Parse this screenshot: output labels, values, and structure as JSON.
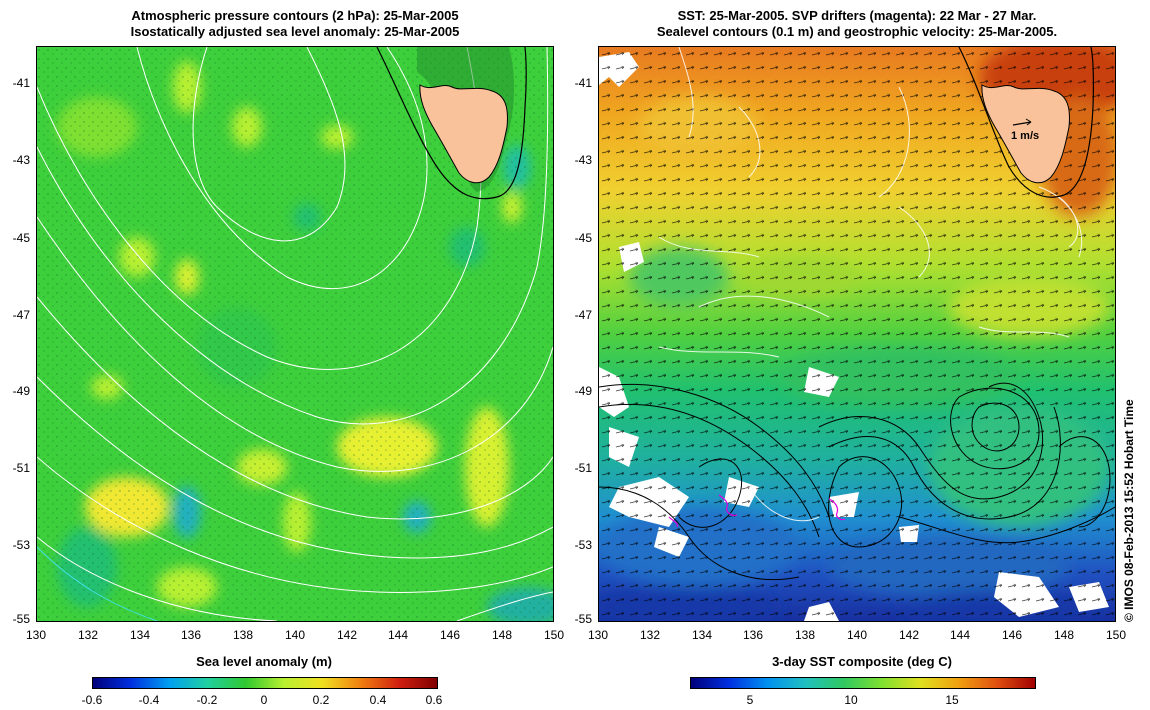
{
  "left_panel": {
    "title_line1": "Atmospheric pressure contours (2 hPa): 25-Mar-2005",
    "title_line2": "Isostatically adjusted sea level anomaly: 25-Mar-2005",
    "colorbar_title": "Sea level anomaly (m)",
    "colorbar_ticks": [
      "-0.6",
      "-0.4",
      "-0.2",
      "0",
      "0.2",
      "0.4",
      "0.6"
    ]
  },
  "right_panel": {
    "title_line1": "SST: 25-Mar-2005. SVP drifters (magenta): 22 Mar - 27 Mar.",
    "title_line2": "Sealevel contours (0.1 m) and geostrophic velocity: 25-Mar-2005.",
    "colorbar_title": "3-day SST composite (deg C)",
    "colorbar_ticks": [
      "5",
      "10",
      "15"
    ],
    "velocity_scale_label": "1 m/s"
  },
  "axes": {
    "x_ticks": [
      "130",
      "132",
      "134",
      "136",
      "138",
      "140",
      "142",
      "144",
      "146",
      "148",
      "150"
    ],
    "y_ticks": [
      "-41",
      "-43",
      "-45",
      "-47",
      "-49",
      "-51",
      "-53",
      "-55"
    ]
  },
  "copyright": "© IMOS 08-Feb-2013 15:52 Hobart Time",
  "colors": {
    "land": "#f9c29a",
    "sla_background": "#3ecf3c",
    "contour": "#ffffff",
    "drifter": "#e000e0"
  },
  "map_data": {
    "lon_range": [
      130,
      150
    ],
    "lat_range": [
      -55,
      -40.2
    ]
  }
}
